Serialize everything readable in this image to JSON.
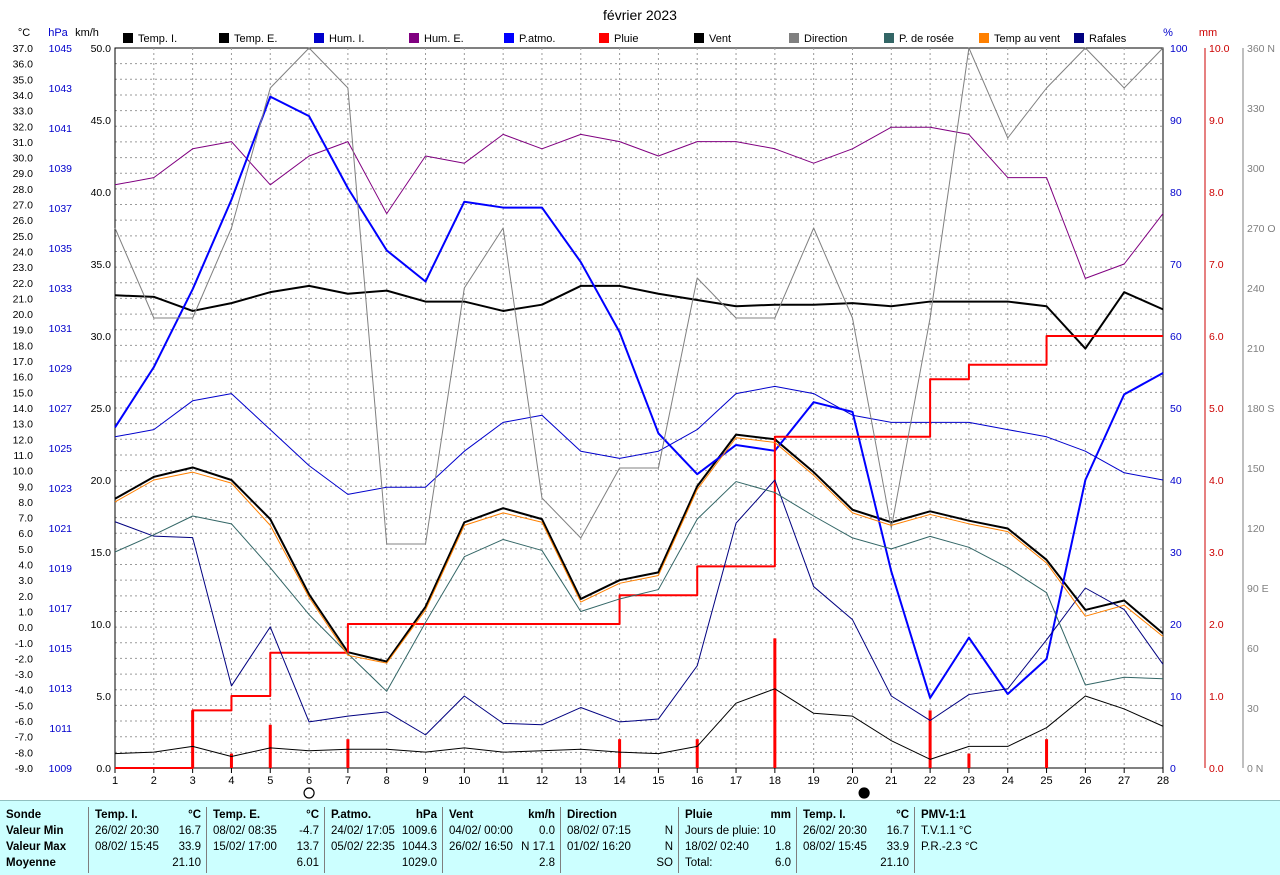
{
  "chart_data": {
    "type": "line",
    "title": "février 2023",
    "x": [
      1,
      2,
      3,
      4,
      5,
      6,
      7,
      8,
      9,
      10,
      11,
      12,
      13,
      14,
      15,
      16,
      17,
      18,
      19,
      20,
      21,
      22,
      23,
      24,
      25,
      26,
      27,
      28
    ],
    "axes": {
      "temp": {
        "label": "°C",
        "range": [
          -9,
          37
        ],
        "ticks": [
          "37.0",
          "36.0",
          "35.0",
          "34.0",
          "33.0",
          "32.0",
          "31.0",
          "30.0",
          "29.0",
          "28.0",
          "27.0",
          "26.0",
          "25.0",
          "24.0",
          "23.0",
          "22.0",
          "21.0",
          "20.0",
          "19.0",
          "18.0",
          "17.0",
          "16.0",
          "15.0",
          "14.0",
          "13.0",
          "12.0",
          "11.0",
          "10.0",
          "9.0",
          "8.0",
          "7.0",
          "6.0",
          "5.0",
          "4.0",
          "3.0",
          "2.0",
          "1.0",
          "0.0",
          "-1.0",
          "-2.0",
          "-3.0",
          "-4.0",
          "-5.0",
          "-6.0",
          "-7.0",
          "-8.0",
          "-9.0"
        ]
      },
      "pressure": {
        "label": "hPa",
        "range": [
          1009,
          1046
        ],
        "ticks": [
          "1045",
          "1043",
          "1041",
          "1039",
          "1037",
          "1035",
          "1033",
          "1031",
          "1029",
          "1027",
          "1025",
          "1023",
          "1021",
          "1019",
          "1017",
          "1015",
          "1013",
          "1011",
          "1009"
        ]
      },
      "wind": {
        "label": "km/h",
        "range": [
          0,
          50
        ],
        "ticks": [
          "50.0",
          "45.0",
          "40.0",
          "35.0",
          "30.0",
          "25.0",
          "20.0",
          "15.0",
          "10.0",
          "5.0",
          "0.0"
        ]
      },
      "humidity": {
        "label": "%",
        "range": [
          0,
          100
        ],
        "ticks": [
          "100",
          "90",
          "80",
          "70",
          "60",
          "50",
          "40",
          "30",
          "20",
          "10",
          "0"
        ]
      },
      "rain": {
        "label": "mm",
        "range": [
          0,
          10
        ],
        "ticks": [
          "10.0",
          "9.0",
          "8.0",
          "7.0",
          "6.0",
          "5.0",
          "4.0",
          "3.0",
          "2.0",
          "1.0",
          "0.0"
        ]
      },
      "direction": {
        "range": [
          0,
          360
        ],
        "ticks": [
          "360 N",
          "330",
          "300",
          "270 O",
          "240",
          "210",
          "180 S",
          "150",
          "120",
          "90 E",
          "60",
          "30",
          "0 N"
        ]
      }
    },
    "series": [
      {
        "name": "Temp. I.",
        "axis": "temp",
        "color": "#000000",
        "width": 2,
        "values": [
          21.2,
          21.1,
          20.2,
          20.7,
          21.4,
          21.8,
          21.3,
          21.5,
          20.8,
          20.8,
          20.2,
          20.6,
          21.8,
          21.8,
          21.3,
          20.9,
          20.5,
          20.6,
          20.6,
          20.7,
          20.5,
          20.8,
          20.8,
          20.8,
          20.5,
          17.8,
          21.4,
          20.3
        ]
      },
      {
        "name": "Temp. E.",
        "axis": "temp",
        "color": "#000000",
        "width": 2,
        "values": [
          8.2,
          9.6,
          10.2,
          9.4,
          6.9,
          2.1,
          -1.6,
          -2.2,
          1.3,
          6.7,
          7.6,
          6.9,
          1.8,
          3.0,
          3.5,
          9.0,
          12.3,
          12.0,
          9.9,
          7.5,
          6.7,
          7.4,
          6.8,
          6.3,
          4.3,
          1.1,
          1.7,
          -0.4
        ]
      },
      {
        "name": "Hum. I.",
        "axis": "humidity",
        "color": "#0000cc",
        "width": 1,
        "values": [
          46,
          47,
          51,
          52,
          47,
          42,
          38,
          39,
          39,
          44,
          48,
          49,
          44,
          43,
          44,
          47,
          52,
          53,
          52,
          49,
          48,
          48,
          48,
          47,
          46,
          44,
          41,
          40
        ]
      },
      {
        "name": "Hum. E.",
        "axis": "humidity",
        "color": "#800080",
        "width": 1,
        "values": [
          81,
          82,
          86,
          87,
          81,
          85,
          87,
          77,
          85,
          84,
          88,
          86,
          88,
          87,
          85,
          87,
          87,
          86,
          84,
          86,
          89,
          89,
          88,
          82,
          82,
          68,
          70,
          77
        ]
      },
      {
        "name": "P.atmo.",
        "axis": "pressure",
        "color": "#0000ff",
        "width": 2,
        "values": [
          1026.5,
          1029.6,
          1033.6,
          1038.2,
          1043.5,
          1042.5,
          1038.8,
          1035.6,
          1034.0,
          1038.1,
          1037.8,
          1037.8,
          1035.0,
          1031.4,
          1026.2,
          1024.1,
          1025.6,
          1025.3,
          1027.8,
          1027.3,
          1019.1,
          1012.6,
          1015.7,
          1012.8,
          1014.6,
          1023.8,
          1028.2,
          1029.3
        ]
      },
      {
        "name": "Pluie",
        "axis": "rain",
        "color": "#ff0000",
        "width": 2,
        "step": true,
        "values": [
          0.0,
          0.0,
          0.8,
          1.0,
          1.6,
          1.6,
          2.0,
          2.0,
          2.0,
          2.0,
          2.0,
          2.0,
          2.0,
          2.4,
          2.4,
          2.8,
          2.8,
          4.6,
          4.6,
          4.6,
          4.6,
          5.4,
          5.6,
          5.6,
          6.0,
          6.0,
          6.0,
          6.0
        ]
      },
      {
        "name": "Pluie (jour)",
        "axis": "rain",
        "color": "#ff0000",
        "width": 3,
        "bars": true,
        "values": [
          0,
          0,
          0.8,
          0.2,
          0.6,
          0,
          0.4,
          0,
          0,
          0,
          0,
          0,
          0,
          0.4,
          0,
          0.4,
          0,
          1.8,
          0,
          0,
          0,
          0.8,
          0.2,
          0,
          0.4,
          0,
          0,
          0
        ]
      },
      {
        "name": "Vent",
        "axis": "wind",
        "color": "#000000",
        "width": 1,
        "values": [
          1.0,
          1.1,
          1.5,
          0.8,
          1.4,
          1.2,
          1.3,
          1.3,
          1.1,
          1.4,
          1.1,
          1.2,
          1.3,
          1.1,
          1.0,
          1.5,
          4.5,
          5.5,
          3.8,
          3.6,
          1.9,
          0.6,
          1.5,
          1.5,
          2.8,
          5.0,
          4.1,
          2.9
        ]
      },
      {
        "name": "Rafales",
        "axis": "wind",
        "color": "#000080",
        "width": 1,
        "values": [
          17.1,
          16.1,
          16.0,
          5.7,
          9.8,
          3.2,
          3.6,
          3.9,
          2.3,
          5.0,
          3.1,
          3.0,
          4.2,
          3.2,
          3.4,
          7.1,
          17.0,
          20.0,
          12.6,
          10.3,
          5.0,
          3.3,
          5.1,
          5.5,
          8.9,
          12.5,
          11.0,
          7.2
        ]
      },
      {
        "name": "Direction",
        "axis": "direction",
        "color": "#808080",
        "width": 1,
        "values": [
          270,
          225,
          225,
          270,
          340,
          360,
          340,
          112,
          112,
          240,
          270,
          135,
          115,
          150,
          150,
          245,
          225,
          225,
          270,
          225,
          120,
          225,
          360,
          315,
          340,
          360,
          340,
          360
        ]
      },
      {
        "name": "P. de rosée",
        "axis": "temp",
        "color": "#336666",
        "width": 1,
        "values": [
          4.8,
          5.9,
          7.1,
          6.6,
          3.8,
          0.8,
          -1.7,
          -4.1,
          0.3,
          4.5,
          5.6,
          4.9,
          1.0,
          1.8,
          2.4,
          6.9,
          9.3,
          8.6,
          7.1,
          5.7,
          5.0,
          5.8,
          5.1,
          3.8,
          2.2,
          -3.7,
          -3.2,
          -3.3
        ]
      },
      {
        "name": "Temp au vent",
        "axis": "temp",
        "color": "#ff8000",
        "width": 1,
        "values": [
          8.0,
          9.4,
          9.9,
          9.2,
          6.5,
          1.9,
          -1.8,
          -2.3,
          1.1,
          6.5,
          7.3,
          6.7,
          1.6,
          2.8,
          3.3,
          8.8,
          12.1,
          11.8,
          9.7,
          7.3,
          6.5,
          7.2,
          6.6,
          6.1,
          4.1,
          0.7,
          1.4,
          -0.6
        ]
      }
    ],
    "legend": [
      "Temp. I.",
      "Temp. E.",
      "Hum. I.",
      "Hum. E.",
      "P.atmo.",
      "Pluie",
      "Vent",
      "Direction",
      "P. de rosée",
      "Temp au vent",
      "Rafales"
    ],
    "moon": [
      {
        "day": 6,
        "phase": "full"
      },
      {
        "day": 20.3,
        "phase": "new"
      }
    ],
    "grid": true
  },
  "colors": {
    "footer_bg": "#ccffff",
    "temp_axis": "#000000",
    "pressure_axis": "#0000cc",
    "humidity_axis": "#0000cc",
    "rain_axis": "#cc0000",
    "direction_axis": "#808080"
  },
  "footer": {
    "row_labels": [
      "Sonde",
      "Valeur Min",
      "Valeur Max",
      "Moyenne"
    ],
    "columns": [
      {
        "key": "ti",
        "title": "Temp. I.",
        "unit": "°C",
        "min_date": "26/02/  20:30",
        "min_val": "16.7",
        "max_date": "08/02/  15:45",
        "max_val": "33.9",
        "avg": "21.10"
      },
      {
        "key": "te",
        "title": "Temp. E.",
        "unit": "°C",
        "min_date": "08/02/  08:35",
        "min_val": "-4.7",
        "max_date": "15/02/  17:00",
        "max_val": "13.7",
        "avg": "6.01"
      },
      {
        "key": "pa",
        "title": "P.atmo.",
        "unit": "hPa",
        "min_date": "24/02/  17:05",
        "min_val": "1009.6",
        "max_date": "05/02/  22:35",
        "max_val": "1044.3",
        "avg": "1029.0"
      },
      {
        "key": "ve",
        "title": "Vent",
        "unit": "km/h",
        "min_date": "04/02/  00:00",
        "min_val": "0.0",
        "max_date": "26/02/  16:50",
        "max_val": "N 17.1",
        "avg": "2.8"
      },
      {
        "key": "di",
        "title": "Direction",
        "unit": "",
        "min_date": "08/02/  07:15",
        "min_val": "N",
        "max_date": "01/02/  16:20",
        "max_val": "N",
        "avg": "SO"
      },
      {
        "key": "pl",
        "title": "Pluie",
        "unit": "mm",
        "min_date": "Jours de pluie: 10",
        "min_val": "",
        "max_date": "18/02/  02:40",
        "max_val": "1.8",
        "avg_label": "Total:",
        "avg": "6.0"
      },
      {
        "key": "ti2",
        "title": "Temp. I.",
        "unit": "°C",
        "min_date": "26/02/  20:30",
        "min_val": "16.7",
        "max_date": "08/02/  15:45",
        "max_val": "33.9",
        "avg": "21.10"
      },
      {
        "key": "pmv",
        "title": "PMV-1:1",
        "unit": "",
        "min_date": "T.V.1.1 °C",
        "min_val": "",
        "max_date": "P.R.-2.3 °C",
        "max_val": "",
        "avg": ""
      }
    ]
  }
}
